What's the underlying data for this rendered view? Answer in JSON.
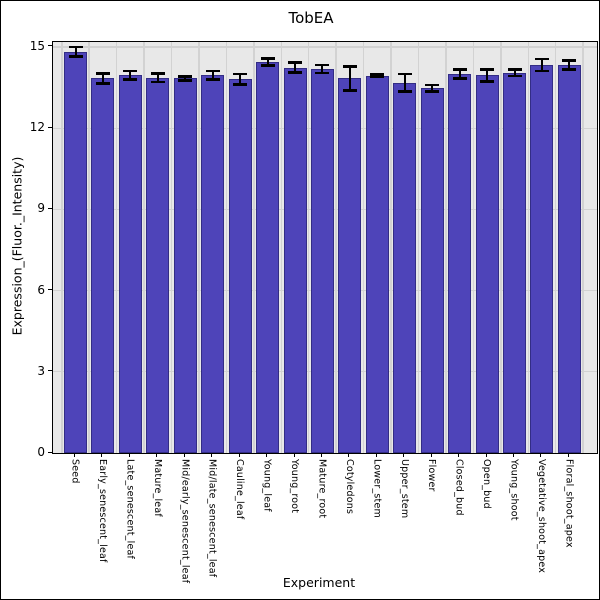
{
  "window": {
    "background": "#ffffff",
    "frame_border_color": "#000000"
  },
  "chart_data": {
    "type": "bar",
    "title": "TobEA",
    "xlabel": "Experiment",
    "ylabel": "Expression_(Fluor._Intensity)",
    "ylim": [
      0,
      15.2
    ],
    "yticks": [
      0,
      3,
      6,
      9,
      12,
      15
    ],
    "grid": true,
    "legend": "none",
    "panel_bg": "#e8e8e8",
    "grid_color": "#d2d2d2",
    "bar_color": "#4e44b9",
    "bar_edge_color": "#332d85",
    "error_color": "#000000",
    "categories": [
      "Seed",
      "Early_senescent_leaf",
      "Late_senescent_leaf",
      "Mature_leaf",
      "Mid/early_senescent_leaf",
      "Mid/late_senescent_leaf",
      "Cauline_leaf",
      "Young_leaf",
      "Young_root",
      "Mature_root",
      "Cotyledons",
      "Lower_stem",
      "Upper_stem",
      "Flower",
      "Closed_bud",
      "Open_bud",
      "Young_shoot",
      "Vegetative_shoot_apex",
      "Floral_shoot_apex"
    ],
    "values": [
      14.82,
      13.84,
      13.96,
      13.87,
      13.84,
      13.96,
      13.81,
      14.44,
      14.24,
      14.19,
      13.84,
      13.94,
      13.68,
      13.47,
      14.0,
      13.95,
      14.05,
      14.33,
      14.33
    ],
    "errors": [
      0.18,
      0.19,
      0.16,
      0.16,
      0.08,
      0.16,
      0.19,
      0.13,
      0.18,
      0.15,
      0.45,
      0.05,
      0.33,
      0.12,
      0.16,
      0.23,
      0.12,
      0.22,
      0.17
    ]
  }
}
